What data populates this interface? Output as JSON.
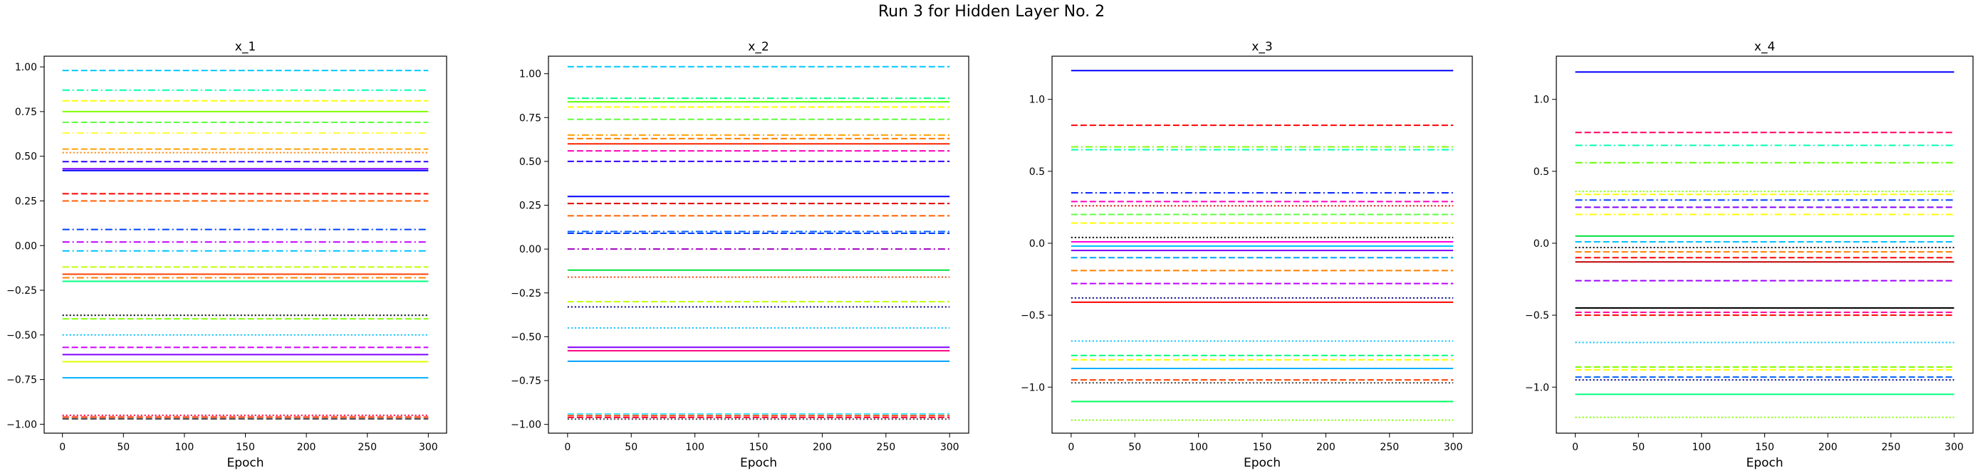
{
  "figure_title": "Run 3 for Hidden Layer No. 2",
  "chart_data": [
    {
      "type": "line",
      "title": "x_1",
      "xlabel": "Epoch",
      "ylabel": "",
      "xlim": [
        -15,
        315
      ],
      "ylim": [
        -1.05,
        1.06
      ],
      "xticks": [
        0,
        50,
        100,
        150,
        200,
        250,
        300
      ],
      "yticks": [
        -1.0,
        -0.75,
        -0.5,
        -0.25,
        0.0,
        0.25,
        0.5,
        0.75,
        1.0
      ],
      "ytick_labels": [
        "−1.00",
        "−0.75",
        "−0.50",
        "−0.25",
        "0.00",
        "0.25",
        "0.50",
        "0.75",
        "1.00"
      ],
      "grid": false,
      "x_range": [
        0,
        300
      ],
      "series": [
        {
          "value": 0.98,
          "color": "#00c8ff",
          "style": "dashed"
        },
        {
          "value": 0.87,
          "color": "#00ffb0",
          "style": "dashdot"
        },
        {
          "value": 0.81,
          "color": "#ffff00",
          "style": "dashed"
        },
        {
          "value": 0.75,
          "color": "#80ff00",
          "style": "solid"
        },
        {
          "value": 0.69,
          "color": "#60ff40",
          "style": "dashed"
        },
        {
          "value": 0.63,
          "color": "#ffff40",
          "style": "dashdot"
        },
        {
          "value": 0.54,
          "color": "#ffa000",
          "style": "dashed"
        },
        {
          "value": 0.52,
          "color": "#ff8000",
          "style": "dotted"
        },
        {
          "value": 0.47,
          "color": "#3000ff",
          "style": "dashed"
        },
        {
          "value": 0.43,
          "color": "#8000ff",
          "style": "solid"
        },
        {
          "value": 0.42,
          "color": "#0000ff",
          "style": "solid"
        },
        {
          "value": 0.29,
          "color": "#ff0000",
          "style": "dashed"
        },
        {
          "value": 0.25,
          "color": "#ff6000",
          "style": "dashed"
        },
        {
          "value": 0.09,
          "color": "#0040ff",
          "style": "dashdot"
        },
        {
          "value": 0.02,
          "color": "#c000ff",
          "style": "dashdot"
        },
        {
          "value": -0.03,
          "color": "#00c0ff",
          "style": "dashdot"
        },
        {
          "value": -0.12,
          "color": "#c0ff00",
          "style": "dashed"
        },
        {
          "value": -0.16,
          "color": "#ff4000",
          "style": "solid"
        },
        {
          "value": -0.18,
          "color": "#ff8000",
          "style": "dashdot"
        },
        {
          "value": -0.2,
          "color": "#00ff80",
          "style": "solid"
        },
        {
          "value": -0.39,
          "color": "#000000",
          "style": "dotted"
        },
        {
          "value": -0.41,
          "color": "#80ff00",
          "style": "dashed"
        },
        {
          "value": -0.5,
          "color": "#00c0ff",
          "style": "dotted"
        },
        {
          "value": -0.57,
          "color": "#d000ff",
          "style": "dashed"
        },
        {
          "value": -0.61,
          "color": "#8000ff",
          "style": "solid"
        },
        {
          "value": -0.65,
          "color": "#e0ff00",
          "style": "solid"
        },
        {
          "value": -0.74,
          "color": "#00b0ff",
          "style": "solid"
        },
        {
          "value": -0.95,
          "color": "#ff0040",
          "style": "dotted"
        },
        {
          "value": -0.96,
          "color": "#ff3000",
          "style": "dashed"
        },
        {
          "value": -0.97,
          "color": "#404040",
          "style": "dashed"
        }
      ]
    },
    {
      "type": "line",
      "title": "x_2",
      "xlabel": "Epoch",
      "ylabel": "",
      "xlim": [
        -15,
        315
      ],
      "ylim": [
        -1.05,
        1.1
      ],
      "xticks": [
        0,
        50,
        100,
        150,
        200,
        250,
        300
      ],
      "yticks": [
        -1.0,
        -0.75,
        -0.5,
        -0.25,
        0.0,
        0.25,
        0.5,
        0.75,
        1.0
      ],
      "ytick_labels": [
        "−1.00",
        "−0.75",
        "−0.50",
        "−0.25",
        "0.00",
        "0.25",
        "0.50",
        "0.75",
        "1.00"
      ],
      "grid": false,
      "x_range": [
        0,
        300
      ],
      "series": [
        {
          "value": 1.04,
          "color": "#00c8ff",
          "style": "dashed"
        },
        {
          "value": 0.86,
          "color": "#00ff80",
          "style": "dashdot"
        },
        {
          "value": 0.84,
          "color": "#60ff00",
          "style": "solid"
        },
        {
          "value": 0.81,
          "color": "#ffff00",
          "style": "dashed"
        },
        {
          "value": 0.74,
          "color": "#60ff40",
          "style": "dashed"
        },
        {
          "value": 0.65,
          "color": "#ffa000",
          "style": "dashdot"
        },
        {
          "value": 0.63,
          "color": "#ff8000",
          "style": "dashed"
        },
        {
          "value": 0.6,
          "color": "#ff2000",
          "style": "solid"
        },
        {
          "value": 0.56,
          "color": "#ff00c0",
          "style": "dashed"
        },
        {
          "value": 0.5,
          "color": "#3000ff",
          "style": "dashed"
        },
        {
          "value": 0.3,
          "color": "#0000ff",
          "style": "solid"
        },
        {
          "value": 0.26,
          "color": "#e00000",
          "style": "dashed"
        },
        {
          "value": 0.19,
          "color": "#ff6000",
          "style": "dashed"
        },
        {
          "value": 0.1,
          "color": "#0060ff",
          "style": "dashdot"
        },
        {
          "value": 0.09,
          "color": "#0040ff",
          "style": "dashed"
        },
        {
          "value": 0.0,
          "color": "#a000c0",
          "style": "dashdot"
        },
        {
          "value": -0.12,
          "color": "#00e040",
          "style": "solid"
        },
        {
          "value": -0.16,
          "color": "#ff4000",
          "style": "dotted"
        },
        {
          "value": -0.3,
          "color": "#c0ff00",
          "style": "dashed"
        },
        {
          "value": -0.33,
          "color": "#000080",
          "style": "dotted"
        },
        {
          "value": -0.45,
          "color": "#00c0ff",
          "style": "dotted"
        },
        {
          "value": -0.56,
          "color": "#8000ff",
          "style": "solid"
        },
        {
          "value": -0.58,
          "color": "#ff0080",
          "style": "solid"
        },
        {
          "value": -0.64,
          "color": "#00a0ff",
          "style": "solid"
        },
        {
          "value": -0.94,
          "color": "#40e0ff",
          "style": "dashed"
        },
        {
          "value": -0.95,
          "color": "#ff4000",
          "style": "dashed"
        },
        {
          "value": -0.96,
          "color": "#ff0040",
          "style": "dashed"
        },
        {
          "value": -0.97,
          "color": "#404040",
          "style": "dotted"
        }
      ]
    },
    {
      "type": "line",
      "title": "x_3",
      "xlabel": "Epoch",
      "ylabel": "",
      "xlim": [
        -15,
        315
      ],
      "ylim": [
        -1.32,
        1.3
      ],
      "xticks": [
        0,
        50,
        100,
        150,
        200,
        250,
        300
      ],
      "yticks": [
        -1.0,
        -0.5,
        0.0,
        0.5,
        1.0
      ],
      "ytick_labels": [
        "−1.0",
        "−0.5",
        "0.0",
        "0.5",
        "1.0"
      ],
      "grid": false,
      "x_range": [
        0,
        300
      ],
      "series": [
        {
          "value": 1.2,
          "color": "#0000ff",
          "style": "solid"
        },
        {
          "value": 0.82,
          "color": "#ff0000",
          "style": "dashed"
        },
        {
          "value": 0.67,
          "color": "#80ff00",
          "style": "dashdot"
        },
        {
          "value": 0.65,
          "color": "#00ffb0",
          "style": "dashdot"
        },
        {
          "value": 0.35,
          "color": "#0020ff",
          "style": "dashdot"
        },
        {
          "value": 0.29,
          "color": "#ff00c0",
          "style": "dashed"
        },
        {
          "value": 0.26,
          "color": "#e00000",
          "style": "dotted"
        },
        {
          "value": 0.2,
          "color": "#60ff40",
          "style": "dashed"
        },
        {
          "value": 0.14,
          "color": "#ffff00",
          "style": "dashed"
        },
        {
          "value": 0.04,
          "color": "#000000",
          "style": "dotted"
        },
        {
          "value": 0.01,
          "color": "#ff00e0",
          "style": "solid"
        },
        {
          "value": -0.02,
          "color": "#00c0ff",
          "style": "solid"
        },
        {
          "value": -0.05,
          "color": "#8000ff",
          "style": "solid"
        },
        {
          "value": -0.1,
          "color": "#00a0ff",
          "style": "dashed"
        },
        {
          "value": -0.19,
          "color": "#ff8000",
          "style": "dashed"
        },
        {
          "value": -0.28,
          "color": "#c000ff",
          "style": "dashed"
        },
        {
          "value": -0.38,
          "color": "#000080",
          "style": "dotted"
        },
        {
          "value": -0.41,
          "color": "#ff0000",
          "style": "solid"
        },
        {
          "value": -0.68,
          "color": "#00c0ff",
          "style": "dotted"
        },
        {
          "value": -0.78,
          "color": "#00ff80",
          "style": "dashed"
        },
        {
          "value": -0.81,
          "color": "#ffff00",
          "style": "dashed"
        },
        {
          "value": -0.87,
          "color": "#00b0ff",
          "style": "solid"
        },
        {
          "value": -0.95,
          "color": "#ff4000",
          "style": "dashed"
        },
        {
          "value": -0.97,
          "color": "#404040",
          "style": "dotted"
        },
        {
          "value": -1.1,
          "color": "#00ff60",
          "style": "solid"
        },
        {
          "value": -1.23,
          "color": "#80ff00",
          "style": "dotted"
        }
      ]
    },
    {
      "type": "line",
      "title": "x_4",
      "xlabel": "Epoch",
      "ylabel": "",
      "xlim": [
        -15,
        315
      ],
      "ylim": [
        -1.32,
        1.3
      ],
      "xticks": [
        0,
        50,
        100,
        150,
        200,
        250,
        300
      ],
      "yticks": [
        -1.0,
        -0.5,
        0.0,
        0.5,
        1.0
      ],
      "ytick_labels": [
        "−1.0",
        "−0.5",
        "0.0",
        "0.5",
        "1.0"
      ],
      "grid": false,
      "x_range": [
        0,
        300
      ],
      "series": [
        {
          "value": 1.19,
          "color": "#0000ff",
          "style": "solid"
        },
        {
          "value": 0.77,
          "color": "#ff0060",
          "style": "dashed"
        },
        {
          "value": 0.68,
          "color": "#00ffb0",
          "style": "dashdot"
        },
        {
          "value": 0.56,
          "color": "#60ff00",
          "style": "dashdot"
        },
        {
          "value": 0.36,
          "color": "#80ff00",
          "style": "dotted"
        },
        {
          "value": 0.34,
          "color": "#ffff00",
          "style": "dashed"
        },
        {
          "value": 0.3,
          "color": "#0040ff",
          "style": "dashdot"
        },
        {
          "value": 0.25,
          "color": "#8000ff",
          "style": "dashed"
        },
        {
          "value": 0.2,
          "color": "#ffff00",
          "style": "dashdot"
        },
        {
          "value": 0.05,
          "color": "#00e040",
          "style": "solid"
        },
        {
          "value": 0.01,
          "color": "#00c0ff",
          "style": "dashed"
        },
        {
          "value": -0.03,
          "color": "#000000",
          "style": "dotted"
        },
        {
          "value": -0.06,
          "color": "#ff8000",
          "style": "dashed"
        },
        {
          "value": -0.1,
          "color": "#ff0000",
          "style": "dashed"
        },
        {
          "value": -0.13,
          "color": "#c00000",
          "style": "solid"
        },
        {
          "value": -0.26,
          "color": "#a000ff",
          "style": "dashed"
        },
        {
          "value": -0.45,
          "color": "#000000",
          "style": "solid"
        },
        {
          "value": -0.48,
          "color": "#ff00a0",
          "style": "dashed"
        },
        {
          "value": -0.5,
          "color": "#ff0000",
          "style": "dashed"
        },
        {
          "value": -0.69,
          "color": "#00c0ff",
          "style": "dotted"
        },
        {
          "value": -0.86,
          "color": "#80ff00",
          "style": "dashed"
        },
        {
          "value": -0.88,
          "color": "#ffff00",
          "style": "dashed"
        },
        {
          "value": -0.93,
          "color": "#0060ff",
          "style": "dashed"
        },
        {
          "value": -0.95,
          "color": "#000080",
          "style": "dotted"
        },
        {
          "value": -1.05,
          "color": "#00ff80",
          "style": "solid"
        },
        {
          "value": -1.21,
          "color": "#80ff00",
          "style": "dotted"
        }
      ]
    }
  ]
}
